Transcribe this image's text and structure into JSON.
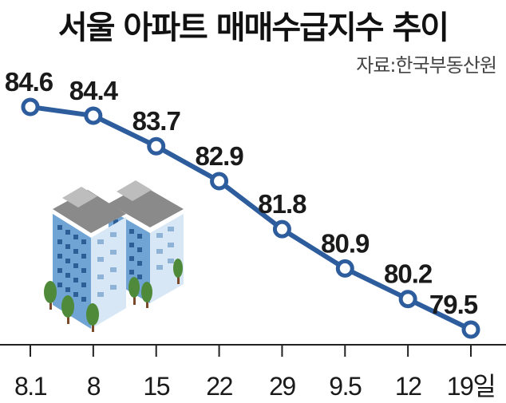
{
  "title": "서울 아파트 매매수급지수 추이",
  "source": "자료:한국부동산원",
  "colors": {
    "line": "#2e5d9e",
    "marker_fill": "#ffffff",
    "axis": "#222222"
  },
  "chart_data": {
    "type": "line",
    "title": "서울 아파트 매매수급지수 추이",
    "xlabel": "",
    "ylabel": "",
    "categories": [
      "8.1",
      "8",
      "15",
      "22",
      "29",
      "9.5",
      "12",
      "19일"
    ],
    "values": [
      84.6,
      84.4,
      83.7,
      82.9,
      81.8,
      80.9,
      80.2,
      79.5
    ],
    "data_labels": [
      "84.6",
      "84.4",
      "83.7",
      "82.9",
      "81.8",
      "80.9",
      "80.2",
      "79.5"
    ],
    "grid": false
  }
}
